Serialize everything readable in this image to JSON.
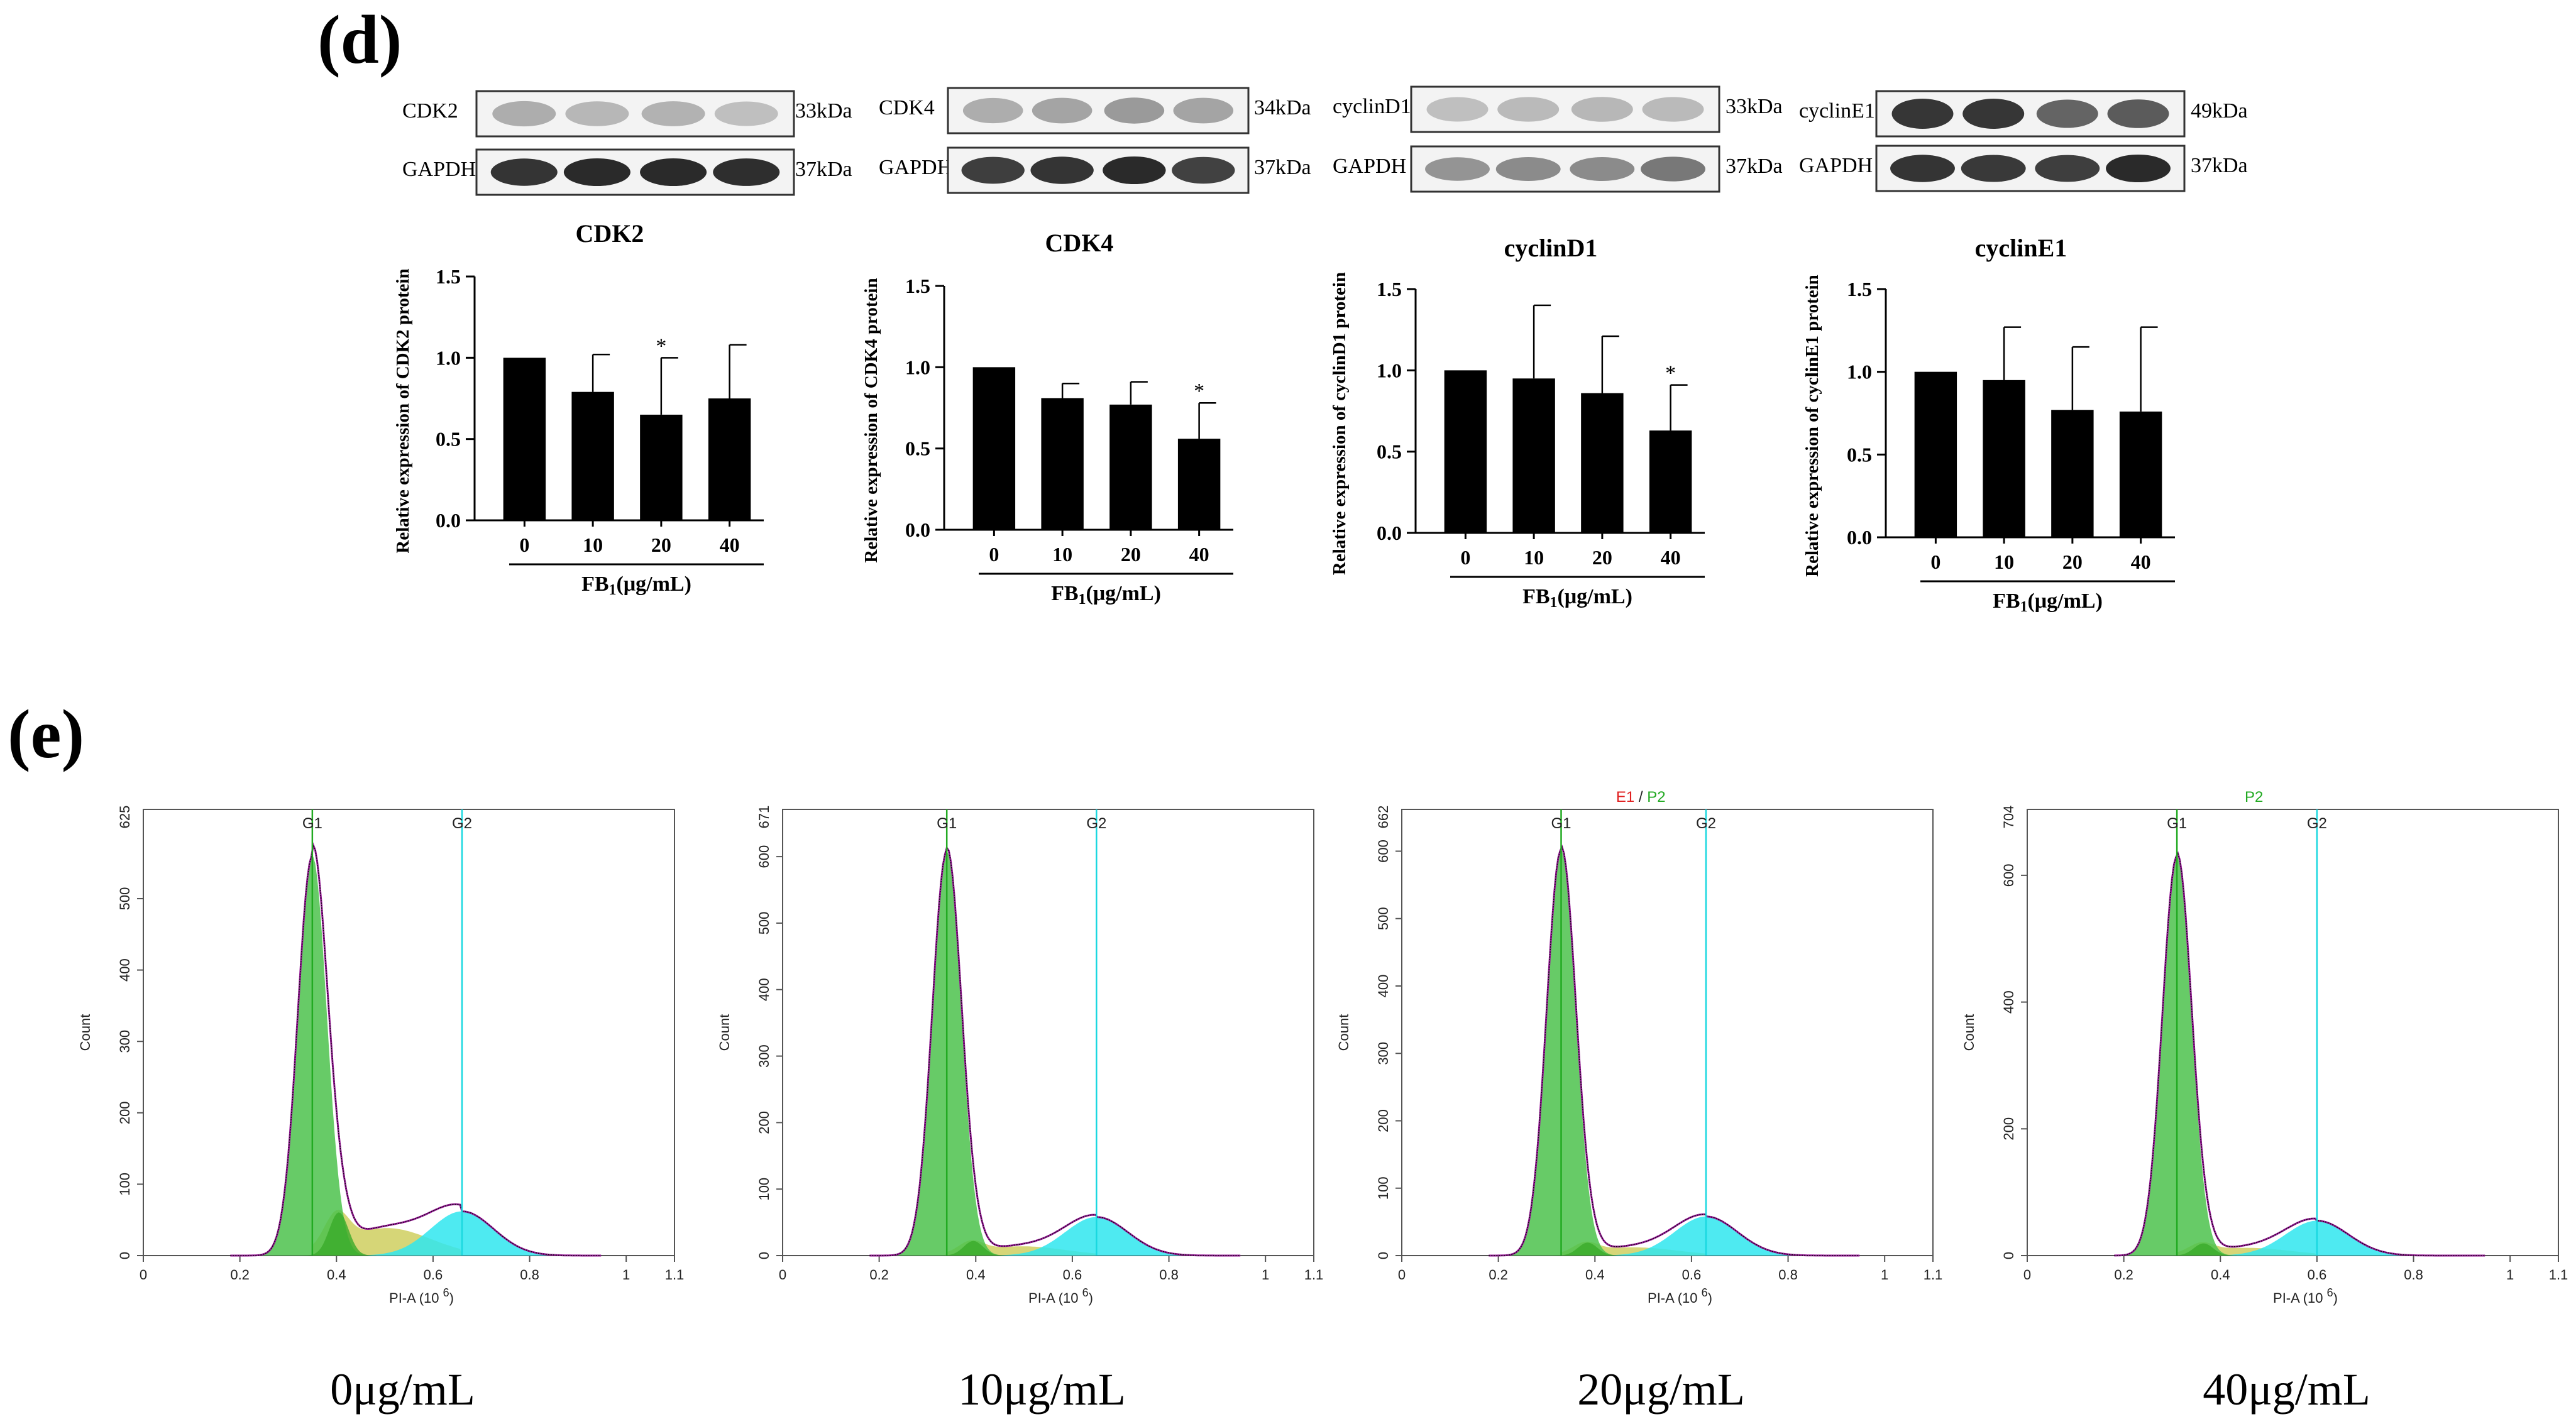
{
  "panel_d": {
    "label": "(d)",
    "blots": [
      {
        "target": "CDK2",
        "target_kda": "33kDa",
        "control": "GAPDH",
        "control_kda": "37kDa"
      },
      {
        "target": "CDK4",
        "target_kda": "34kDa",
        "control": "GAPDH",
        "control_kda": "37kDa"
      },
      {
        "target": "cyclinD1",
        "target_kda": "33kDa",
        "control": "GAPDH",
        "control_kda": "37kDa"
      },
      {
        "target": "cyclinE1",
        "target_kda": "49kDa",
        "control": "GAPDH",
        "control_kda": "37kDa"
      }
    ],
    "band_intensity": [
      {
        "target": [
          0.35,
          0.3,
          0.32,
          0.25
        ],
        "control": [
          0.95,
          1.0,
          1.0,
          0.98
        ]
      },
      {
        "target": [
          0.35,
          0.4,
          0.45,
          0.4
        ],
        "control": [
          0.9,
          0.95,
          1.0,
          0.88
        ]
      },
      {
        "target": [
          0.25,
          0.28,
          0.3,
          0.28
        ],
        "control": [
          0.45,
          0.5,
          0.5,
          0.6
        ]
      },
      {
        "target": [
          1.0,
          1.0,
          0.75,
          0.8
        ],
        "control": [
          0.95,
          0.92,
          0.9,
          1.0
        ]
      }
    ]
  },
  "chart_data": [
    {
      "type": "bar",
      "title": "CDK2",
      "categories": [
        "0",
        "10",
        "20",
        "40"
      ],
      "values": [
        1.0,
        0.79,
        0.65,
        0.75
      ],
      "errors": [
        0,
        0.23,
        0.35,
        0.33
      ],
      "significance": [
        "",
        "",
        "*",
        ""
      ],
      "ylabel": "Relative expression of CDK2 protein",
      "xlabel": "FB1(μg/mL)",
      "xlabel_main": "FB",
      "xlabel_sub": "1",
      "xlabel_tail": "(μg/mL)",
      "ylim": [
        0,
        1.5
      ],
      "yticks": [
        "0.0",
        "0.5",
        "1.0",
        "1.5"
      ]
    },
    {
      "type": "bar",
      "title": "CDK4",
      "categories": [
        "0",
        "10",
        "20",
        "40"
      ],
      "values": [
        1.0,
        0.81,
        0.77,
        0.56
      ],
      "errors": [
        0,
        0.09,
        0.14,
        0.22
      ],
      "significance": [
        "",
        "",
        "",
        "*"
      ],
      "ylabel": "Relative expression of CDK4 protein",
      "xlabel": "FB1(μg/mL)",
      "xlabel_main": "FB",
      "xlabel_sub": "1",
      "xlabel_tail": "(μg/mL)",
      "ylim": [
        0,
        1.5
      ],
      "yticks": [
        "0.0",
        "0.5",
        "1.0",
        "1.5"
      ]
    },
    {
      "type": "bar",
      "title": "cyclinD1",
      "categories": [
        "0",
        "10",
        "20",
        "40"
      ],
      "values": [
        1.0,
        0.95,
        0.86,
        0.63
      ],
      "errors": [
        0,
        0.45,
        0.35,
        0.28
      ],
      "significance": [
        "",
        "",
        "",
        "*"
      ],
      "ylabel": "Relative expression of cyclinD1 protein",
      "xlabel": "FB1(μg/mL)",
      "xlabel_main": "FB",
      "xlabel_sub": "1",
      "xlabel_tail": "(μg/mL)",
      "ylim": [
        0,
        1.5
      ],
      "yticks": [
        "0.0",
        "0.5",
        "1.0",
        "1.5"
      ]
    },
    {
      "type": "bar",
      "title": "cyclinE1",
      "categories": [
        "0",
        "10",
        "20",
        "40"
      ],
      "values": [
        1.0,
        0.95,
        0.77,
        0.76
      ],
      "errors": [
        0,
        0.32,
        0.38,
        0.51
      ],
      "significance": [
        "",
        "",
        "",
        ""
      ],
      "ylabel": "Relative expression of cyclinE1 protein",
      "xlabel": "FB1(μg/mL)",
      "xlabel_main": "FB",
      "xlabel_sub": "1",
      "xlabel_tail": "(μg/mL)",
      "ylim": [
        0,
        1.5
      ],
      "yticks": [
        "0.0",
        "0.5",
        "1.0",
        "1.5"
      ]
    },
    {
      "type": "area",
      "caption": "0μg/mL",
      "ymax_label": "625",
      "ylim": [
        0,
        625
      ],
      "yticks": [
        0,
        100,
        200,
        300,
        400,
        500
      ],
      "top_label_red": "",
      "top_label_sep": "",
      "top_label_green": "",
      "g1_peak": 0.35,
      "g1_height": 560,
      "g2_peak": 0.66,
      "g2_height": 62,
      "s_height": 110
    },
    {
      "type": "area",
      "caption": "10μg/mL",
      "ymax_label": "671",
      "ylim": [
        0,
        671
      ],
      "yticks": [
        0,
        100,
        200,
        300,
        400,
        500,
        600
      ],
      "top_label_red": "",
      "top_label_sep": "",
      "top_label_green": "",
      "g1_peak": 0.34,
      "g1_height": 608,
      "g2_peak": 0.65,
      "g2_height": 58,
      "s_height": 40
    },
    {
      "type": "area",
      "caption": "20μg/mL",
      "ymax_label": "662",
      "ylim": [
        0,
        662
      ],
      "yticks": [
        0,
        100,
        200,
        300,
        400,
        500,
        600
      ],
      "top_label_red": "E1",
      "top_label_sep": " / ",
      "top_label_green": "P2",
      "g1_peak": 0.33,
      "g1_height": 602,
      "g2_peak": 0.63,
      "g2_height": 58,
      "s_height": 35
    },
    {
      "type": "area",
      "caption": "40μg/mL",
      "ymax_label": "704",
      "ylim": [
        0,
        704
      ],
      "yticks": [
        0,
        200,
        400,
        600
      ],
      "top_label_red": "",
      "top_label_sep": "",
      "top_label_green": "P2",
      "g1_peak": 0.31,
      "g1_height": 630,
      "g2_peak": 0.6,
      "g2_height": 55,
      "s_height": 35
    }
  ],
  "panel_e": {
    "label": "(e)",
    "xlabel": "PI-A",
    "xlabel_unit": "(10",
    "xlabel_exp": "6",
    "xlabel_close": ")",
    "ylabel": "Count",
    "gate_g1": "G1",
    "gate_g2": "G2",
    "xticks": [
      "0",
      "0.2",
      "0.4",
      "0.6",
      "0.8",
      "1",
      "1.1"
    ]
  },
  "colors": {
    "g1_fill": "#4cc24c",
    "g2_fill": "#2fe6ee",
    "s_fill": "#c8c84a",
    "fit_line": "#9a1a9a",
    "g1_line": "#22aa22",
    "g2_line": "#1ad8e0",
    "red_label": "#e02020",
    "green_label": "#22aa22"
  }
}
